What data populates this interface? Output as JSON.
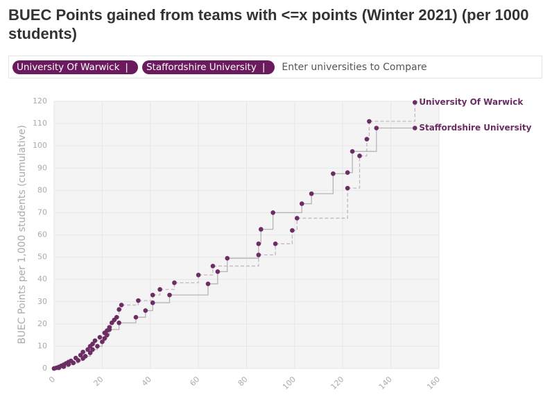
{
  "selector": {
    "tags": [
      "University Of Warwick",
      "Staffordshire University"
    ],
    "placeholder": "Enter universities to Compare"
  },
  "chart_data": {
    "type": "step",
    "title": "BUEC Points gained from teams with <=x points (Winter 2021) (per 1000 students)",
    "y_label": "BUEC Points per 1,000 students (cumulative)",
    "xlim": [
      0,
      160
    ],
    "xticks": [
      0,
      20,
      40,
      60,
      80,
      100,
      120,
      140,
      160
    ],
    "ylim": [
      0,
      120
    ],
    "yticks": [
      0,
      10,
      20,
      30,
      40,
      50,
      60,
      70,
      80,
      90,
      100,
      110,
      120
    ],
    "grid": true,
    "series": [
      {
        "name": "University Of Warwick",
        "color": "#6b2d63",
        "line_color": "#c7b3c4",
        "dashed": true,
        "x": [
          0,
          1,
          2,
          3,
          4,
          5,
          6,
          7,
          9,
          11,
          12,
          14,
          15,
          16,
          17,
          19,
          21,
          22,
          23,
          24,
          25,
          26,
          27,
          28,
          35,
          41,
          44,
          50,
          60,
          66,
          85,
          92,
          99,
          101,
          122,
          127,
          130,
          131,
          150
        ],
        "values": [
          0,
          0.3,
          0.7,
          1.2,
          1.7,
          2.3,
          2.9,
          3.4,
          4.7,
          6,
          7.4,
          8.5,
          10,
          11,
          12.5,
          14,
          16,
          17,
          18.5,
          20.5,
          21.8,
          23,
          26.5,
          28.5,
          30.5,
          33,
          35.5,
          38.5,
          42,
          46,
          51,
          56,
          62,
          67.5,
          81,
          95.5,
          103,
          111,
          119.5
        ]
      },
      {
        "name": "Staffordshire University",
        "color": "#6b2d63",
        "line_color": "#b5b5b5",
        "dashed": false,
        "x": [
          0,
          2,
          4,
          6,
          8,
          10,
          12,
          13,
          15,
          16,
          18,
          20,
          21,
          22,
          23,
          27,
          34,
          38,
          41,
          48,
          64,
          68,
          72,
          85,
          86,
          91,
          103,
          107,
          116,
          122,
          124,
          134,
          150
        ],
        "values": [
          0,
          0.3,
          0.8,
          1.8,
          2.5,
          3.6,
          4.5,
          5.5,
          7,
          8.5,
          10,
          12,
          13.5,
          15,
          17.5,
          20.5,
          23,
          26,
          29.5,
          33,
          38,
          43.5,
          49.5,
          56,
          62.5,
          70,
          74,
          78.5,
          87.5,
          88,
          97.5,
          108,
          108
        ]
      }
    ]
  }
}
